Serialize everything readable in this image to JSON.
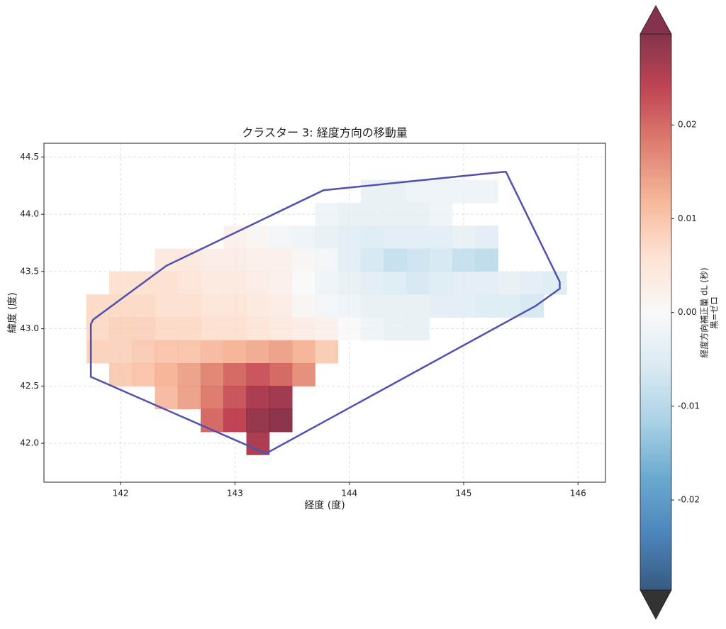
{
  "chart_data": {
    "type": "heatmap",
    "title": "クラスター 3: 経度方向の移動量",
    "x_label": "経度 (度)",
    "y_label": "緯度 (度)",
    "xlim": [
      141.33,
      146.24
    ],
    "ylim": [
      41.66,
      44.62
    ],
    "xticks": [
      142,
      143,
      144,
      145,
      146
    ],
    "yticks": [
      {
        "value": 42.0,
        "label": "42.0"
      },
      42.5,
      {
        "value": 43.0,
        "label": "43.0"
      },
      43.5,
      {
        "value": 44.0,
        "label": "44.0"
      },
      44.5
    ],
    "grid": true,
    "cell_size": 0.2,
    "x": [
      144.2,
      144.4,
      144.6,
      144.8,
      145.0,
      145.2,
      143.8,
      144.0,
      144.2,
      144.4,
      144.6,
      144.8,
      143.0,
      143.2,
      143.4,
      143.6,
      143.8,
      144.0,
      144.2,
      144.4,
      144.6,
      144.8,
      145.0,
      145.2,
      142.4,
      142.6,
      142.8,
      143.0,
      143.2,
      143.4,
      143.6,
      143.8,
      144.0,
      144.2,
      144.4,
      144.6,
      144.8,
      145.0,
      145.2,
      142.0,
      142.2,
      142.4,
      142.6,
      142.8,
      143.0,
      143.2,
      143.4,
      143.6,
      143.8,
      144.0,
      144.2,
      144.4,
      144.6,
      144.8,
      145.0,
      145.2,
      145.4,
      145.6,
      145.8,
      141.8,
      142.0,
      142.2,
      142.4,
      142.6,
      142.8,
      143.0,
      143.2,
      143.4,
      143.6,
      143.8,
      144.0,
      144.2,
      144.4,
      144.6,
      144.8,
      145.0,
      145.2,
      145.4,
      145.6,
      141.8,
      142.0,
      142.2,
      142.4,
      142.6,
      142.8,
      143.0,
      143.2,
      143.4,
      143.6,
      143.8,
      144.0,
      144.2,
      144.4,
      144.6,
      141.8,
      142.0,
      142.2,
      142.4,
      142.6,
      142.8,
      143.0,
      143.2,
      143.4,
      143.6,
      143.8,
      142.0,
      142.2,
      142.4,
      142.6,
      142.8,
      143.0,
      143.2,
      143.4,
      143.6,
      142.4,
      142.6,
      142.8,
      143.0,
      143.2,
      143.4,
      142.8,
      143.0,
      143.2,
      143.4,
      143.2
    ],
    "y": [
      44.2,
      44.2,
      44.2,
      44.2,
      44.2,
      44.2,
      44.0,
      44.0,
      44.0,
      44.0,
      44.0,
      44.0,
      43.8,
      43.8,
      43.8,
      43.8,
      43.8,
      43.8,
      43.8,
      43.8,
      43.8,
      43.8,
      43.8,
      43.8,
      43.6,
      43.6,
      43.6,
      43.6,
      43.6,
      43.6,
      43.6,
      43.6,
      43.6,
      43.6,
      43.6,
      43.6,
      43.6,
      43.6,
      43.6,
      43.4,
      43.4,
      43.4,
      43.4,
      43.4,
      43.4,
      43.4,
      43.4,
      43.4,
      43.4,
      43.4,
      43.4,
      43.4,
      43.4,
      43.4,
      43.4,
      43.4,
      43.4,
      43.4,
      43.4,
      43.2,
      43.2,
      43.2,
      43.2,
      43.2,
      43.2,
      43.2,
      43.2,
      43.2,
      43.2,
      43.2,
      43.2,
      43.2,
      43.2,
      43.2,
      43.2,
      43.2,
      43.2,
      43.2,
      43.2,
      43.0,
      43.0,
      43.0,
      43.0,
      43.0,
      43.0,
      43.0,
      43.0,
      43.0,
      43.0,
      43.0,
      43.0,
      43.0,
      43.0,
      43.0,
      42.8,
      42.8,
      42.8,
      42.8,
      42.8,
      42.8,
      42.8,
      42.8,
      42.8,
      42.8,
      42.8,
      42.6,
      42.6,
      42.6,
      42.6,
      42.6,
      42.6,
      42.6,
      42.6,
      42.6,
      42.4,
      42.4,
      42.4,
      42.4,
      42.4,
      42.4,
      42.2,
      42.2,
      42.2,
      42.2,
      42.0
    ],
    "values": [
      -0.003,
      -0.003,
      -0.002,
      -0.002,
      -0.002,
      -0.002,
      -0.002,
      -0.003,
      -0.003,
      -0.003,
      -0.003,
      -0.002,
      0.002,
      0.001,
      -0.001,
      -0.002,
      -0.003,
      -0.004,
      -0.005,
      -0.004,
      -0.004,
      -0.004,
      -0.003,
      -0.004,
      0.004,
      0.004,
      0.003,
      0.003,
      0.002,
      0.002,
      0.001,
      -0.001,
      -0.004,
      -0.006,
      -0.008,
      -0.007,
      -0.006,
      -0.008,
      -0.009,
      0.006,
      0.006,
      0.006,
      0.005,
      0.004,
      0.004,
      0.003,
      0.002,
      0.0,
      -0.002,
      -0.003,
      -0.004,
      -0.005,
      -0.006,
      -0.005,
      -0.004,
      -0.004,
      -0.003,
      -0.004,
      -0.005,
      0.007,
      0.007,
      0.007,
      0.006,
      0.006,
      0.005,
      0.005,
      0.004,
      0.003,
      0.001,
      -0.001,
      -0.002,
      -0.003,
      -0.003,
      -0.003,
      -0.004,
      -0.004,
      -0.005,
      -0.005,
      -0.006,
      0.007,
      0.008,
      0.008,
      0.007,
      0.007,
      0.006,
      0.006,
      0.005,
      0.004,
      0.003,
      0.002,
      0.0,
      -0.002,
      -0.003,
      -0.003,
      0.008,
      0.008,
      0.009,
      0.01,
      0.01,
      0.011,
      0.012,
      0.013,
      0.014,
      0.012,
      0.009,
      0.009,
      0.01,
      0.012,
      0.014,
      0.017,
      0.02,
      0.022,
      0.02,
      0.016,
      0.011,
      0.014,
      0.018,
      0.022,
      0.026,
      0.027,
      0.02,
      0.024,
      0.028,
      0.029,
      0.026
    ],
    "hull": {
      "color": "#5050b0",
      "lon": [
        143.775,
        145.35,
        145.37,
        145.84,
        145.84,
        145.63,
        143.27,
        143.25,
        141.74,
        141.74,
        141.76,
        142.4
      ],
      "lat": [
        44.21,
        44.37,
        44.37,
        43.41,
        43.35,
        43.2,
        41.91,
        41.92,
        42.58,
        43.04,
        43.08,
        43.55
      ]
    },
    "colorbar": {
      "label": [
        "経度方向補正量 dL (秒)",
        "黒=ゼロ"
      ],
      "clim": [
        -0.0296,
        0.0297
      ],
      "ticks": [
        -0.02,
        -0.01,
        {
          "value": 0,
          "label": "0.00"
        },
        0.01,
        0.02
      ],
      "colormap": [
        "#053061",
        "#2166ac",
        "#4393c3",
        "#92c5de",
        "#d1e5f0",
        "#f7f7f7",
        "#fddbc7",
        "#f4a582",
        "#d6604d",
        "#b2182b",
        "#67001f"
      ],
      "alpha": 0.8,
      "extend_colors": {
        "over": "#67001f",
        "under": "#333333"
      }
    }
  }
}
